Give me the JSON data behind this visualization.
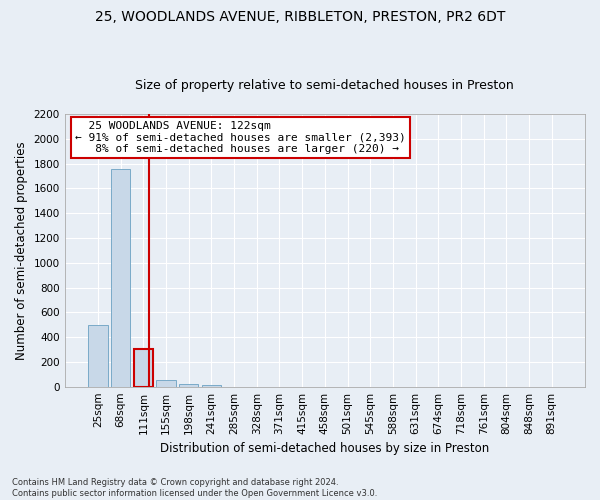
{
  "title_line1": "25, WOODLANDS AVENUE, RIBBLETON, PRESTON, PR2 6DT",
  "title_line2": "Size of property relative to semi-detached houses in Preston",
  "xlabel": "Distribution of semi-detached houses by size in Preston",
  "ylabel": "Number of semi-detached properties",
  "footnote": "Contains HM Land Registry data © Crown copyright and database right 2024.\nContains public sector information licensed under the Open Government Licence v3.0.",
  "categories": [
    "25sqm",
    "68sqm",
    "111sqm",
    "155sqm",
    "198sqm",
    "241sqm",
    "285sqm",
    "328sqm",
    "371sqm",
    "415sqm",
    "458sqm",
    "501sqm",
    "545sqm",
    "588sqm",
    "631sqm",
    "674sqm",
    "718sqm",
    "761sqm",
    "804sqm",
    "848sqm",
    "891sqm"
  ],
  "values": [
    500,
    1760,
    305,
    55,
    25,
    15,
    0,
    0,
    0,
    0,
    0,
    0,
    0,
    0,
    0,
    0,
    0,
    0,
    0,
    0,
    0
  ],
  "bar_color": "#c8d8e8",
  "bar_edge_color": "#7aaac8",
  "highlight_bar_index": 2,
  "highlight_bar_edge_color": "#cc0000",
  "vline_x": 2.27,
  "vline_color": "#cc0000",
  "annotation_text": "  25 WOODLANDS AVENUE: 122sqm  \n← 91% of semi-detached houses are smaller (2,393)\n   8% of semi-detached houses are larger (220) →",
  "annotation_box_facecolor": "#ffffff",
  "annotation_box_edgecolor": "#cc0000",
  "ylim_max": 2200,
  "yticks": [
    0,
    200,
    400,
    600,
    800,
    1000,
    1200,
    1400,
    1600,
    1800,
    2000,
    2200
  ],
  "background_color": "#e8eef5",
  "grid_color": "#ffffff",
  "title_fontsize": 10,
  "subtitle_fontsize": 9,
  "axis_label_fontsize": 8.5,
  "tick_fontsize": 7.5,
  "annotation_fontsize": 8
}
